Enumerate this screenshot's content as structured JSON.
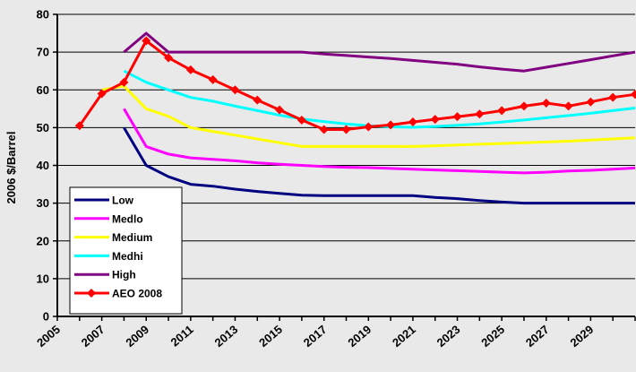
{
  "chart_data": {
    "type": "line",
    "title": "",
    "xlabel": "",
    "ylabel": "2006 $/Barrel",
    "xlim": [
      2005,
      2031
    ],
    "ylim": [
      0,
      80
    ],
    "y_ticks": [
      0,
      10,
      20,
      30,
      40,
      50,
      60,
      70,
      80
    ],
    "x_ticks": [
      2005,
      2007,
      2009,
      2011,
      2013,
      2015,
      2017,
      2019,
      2021,
      2023,
      2025,
      2027,
      2029
    ],
    "grid": "horizontal",
    "legend": "bottom-left",
    "series": [
      {
        "name": "Low",
        "color": "#000080",
        "marker": "none",
        "points": [
          [
            2008,
            50
          ],
          [
            2009,
            40
          ],
          [
            2010,
            37
          ],
          [
            2011,
            35
          ],
          [
            2012,
            34.5
          ],
          [
            2013,
            33.7
          ],
          [
            2014,
            33.1
          ],
          [
            2015,
            32.6
          ],
          [
            2016,
            32.1
          ],
          [
            2017,
            32
          ],
          [
            2018,
            32
          ],
          [
            2019,
            32
          ],
          [
            2020,
            32
          ],
          [
            2021,
            32
          ],
          [
            2022,
            31.5
          ],
          [
            2023,
            31.2
          ],
          [
            2024,
            30.7
          ],
          [
            2025,
            30.3
          ],
          [
            2026,
            30
          ],
          [
            2027,
            30
          ],
          [
            2028,
            30
          ],
          [
            2029,
            30
          ],
          [
            2030,
            30
          ],
          [
            2031,
            30
          ]
        ]
      },
      {
        "name": "Medlo",
        "color": "#ff00ff",
        "marker": "none",
        "points": [
          [
            2008,
            55
          ],
          [
            2009,
            45
          ],
          [
            2010,
            43
          ],
          [
            2011,
            42
          ],
          [
            2012,
            41.6
          ],
          [
            2013,
            41.2
          ],
          [
            2014,
            40.7
          ],
          [
            2015,
            40.3
          ],
          [
            2016,
            40
          ],
          [
            2017,
            39.7
          ],
          [
            2018,
            39.5
          ],
          [
            2019,
            39.4
          ],
          [
            2020,
            39.2
          ],
          [
            2021,
            39
          ],
          [
            2022,
            38.8
          ],
          [
            2023,
            38.6
          ],
          [
            2024,
            38.4
          ],
          [
            2025,
            38.2
          ],
          [
            2026,
            38
          ],
          [
            2027,
            38.2
          ],
          [
            2028,
            38.5
          ],
          [
            2029,
            38.7
          ],
          [
            2030,
            39
          ],
          [
            2031,
            39.3
          ]
        ]
      },
      {
        "name": "Medium",
        "color": "#ffff00",
        "marker": "none",
        "points": [
          [
            2007,
            60
          ],
          [
            2008,
            61
          ],
          [
            2009,
            55
          ],
          [
            2010,
            53
          ],
          [
            2011,
            50
          ],
          [
            2012,
            49
          ],
          [
            2013,
            48
          ],
          [
            2014,
            47
          ],
          [
            2015,
            46
          ],
          [
            2016,
            45
          ],
          [
            2017,
            45
          ],
          [
            2018,
            45
          ],
          [
            2019,
            45
          ],
          [
            2020,
            45
          ],
          [
            2021,
            45
          ],
          [
            2022,
            45.2
          ],
          [
            2023,
            45.4
          ],
          [
            2024,
            45.6
          ],
          [
            2025,
            45.8
          ],
          [
            2026,
            46
          ],
          [
            2027,
            46.2
          ],
          [
            2028,
            46.4
          ],
          [
            2029,
            46.7
          ],
          [
            2030,
            47
          ],
          [
            2031,
            47.3
          ]
        ]
      },
      {
        "name": "Medhi",
        "color": "#00ffff",
        "marker": "none",
        "points": [
          [
            2008,
            65
          ],
          [
            2009,
            62
          ],
          [
            2010,
            60
          ],
          [
            2011,
            58
          ],
          [
            2012,
            57
          ],
          [
            2013,
            55.7
          ],
          [
            2014,
            54.5
          ],
          [
            2015,
            53.3
          ],
          [
            2016,
            52.3
          ],
          [
            2017,
            51.6
          ],
          [
            2018,
            51
          ],
          [
            2019,
            50.5
          ],
          [
            2020,
            50.2
          ],
          [
            2021,
            50.1
          ],
          [
            2022,
            50.3
          ],
          [
            2023,
            50.6
          ],
          [
            2024,
            51
          ],
          [
            2025,
            51.5
          ],
          [
            2026,
            52
          ],
          [
            2027,
            52.6
          ],
          [
            2028,
            53.2
          ],
          [
            2029,
            53.8
          ],
          [
            2030,
            54.5
          ],
          [
            2031,
            55.2
          ]
        ]
      },
      {
        "name": "High",
        "color": "#800080",
        "marker": "none",
        "points": [
          [
            2008,
            70
          ],
          [
            2009,
            75
          ],
          [
            2010,
            70
          ],
          [
            2011,
            70
          ],
          [
            2012,
            70
          ],
          [
            2013,
            70
          ],
          [
            2014,
            70
          ],
          [
            2015,
            70
          ],
          [
            2016,
            70
          ],
          [
            2017,
            69.5
          ],
          [
            2018,
            69.1
          ],
          [
            2019,
            68.7
          ],
          [
            2020,
            68.3
          ],
          [
            2021,
            67.8
          ],
          [
            2022,
            67.3
          ],
          [
            2023,
            66.8
          ],
          [
            2024,
            66.1
          ],
          [
            2025,
            65.5
          ],
          [
            2026,
            65
          ],
          [
            2027,
            66
          ],
          [
            2028,
            67
          ],
          [
            2029,
            68
          ],
          [
            2030,
            69
          ],
          [
            2031,
            70
          ]
        ]
      },
      {
        "name": "AEO 2008",
        "color": "#ff0000",
        "marker": "diamond",
        "points": [
          [
            2006,
            50.5
          ],
          [
            2007,
            59
          ],
          [
            2008,
            62
          ],
          [
            2009,
            73
          ],
          [
            2010,
            68.5
          ],
          [
            2011,
            65.3
          ],
          [
            2012,
            62.7
          ],
          [
            2013,
            60
          ],
          [
            2014,
            57.3
          ],
          [
            2015,
            54.7
          ],
          [
            2016,
            52
          ],
          [
            2017,
            49.5
          ],
          [
            2018,
            49.5
          ],
          [
            2019,
            50.2
          ],
          [
            2020,
            50.7
          ],
          [
            2021,
            51.5
          ],
          [
            2022,
            52.2
          ],
          [
            2023,
            52.9
          ],
          [
            2024,
            53.6
          ],
          [
            2025,
            54.5
          ],
          [
            2026,
            55.7
          ],
          [
            2027,
            56.5
          ],
          [
            2028,
            55.7
          ],
          [
            2029,
            56.8
          ],
          [
            2030,
            58
          ],
          [
            2031,
            58.8
          ]
        ]
      }
    ]
  }
}
